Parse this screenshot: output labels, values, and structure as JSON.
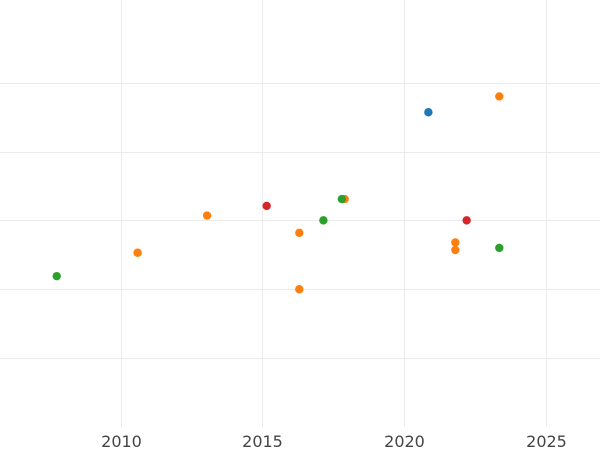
{
  "chart_data": {
    "type": "scatter",
    "title": "",
    "xlabel": "",
    "ylabel": "",
    "xlim": [
      2005.75,
      2026.9
    ],
    "ylim": [
      -6.0,
      0.2
    ],
    "x_ticks": [
      2010,
      2015,
      2020,
      2025
    ],
    "y_gridlines": [
      -5,
      -4,
      -3,
      -2,
      -1
    ],
    "grid": true,
    "legend": "none",
    "series": [
      {
        "color": "#1f77b4",
        "points": [
          {
            "x": 2020.85,
            "y": -1.43
          }
        ]
      },
      {
        "color": "#ff7f0e",
        "points": [
          {
            "x": 2010.6,
            "y": -3.47
          },
          {
            "x": 2013.05,
            "y": -2.93
          },
          {
            "x": 2016.3,
            "y": -3.18
          },
          {
            "x": 2016.3,
            "y": -4.0
          },
          {
            "x": 2017.9,
            "y": -2.69
          },
          {
            "x": 2021.8,
            "y": -3.32
          },
          {
            "x": 2021.8,
            "y": -3.43
          },
          {
            "x": 2023.35,
            "y": -1.2
          }
        ]
      },
      {
        "color": "#2ca02c",
        "points": [
          {
            "x": 2007.75,
            "y": -3.81
          },
          {
            "x": 2017.15,
            "y": -3.0
          },
          {
            "x": 2017.8,
            "y": -2.69
          },
          {
            "x": 2023.35,
            "y": -3.4
          }
        ]
      },
      {
        "color": "#d62728",
        "points": [
          {
            "x": 2015.15,
            "y": -2.79
          },
          {
            "x": 2022.2,
            "y": -3.0
          }
        ]
      }
    ]
  }
}
